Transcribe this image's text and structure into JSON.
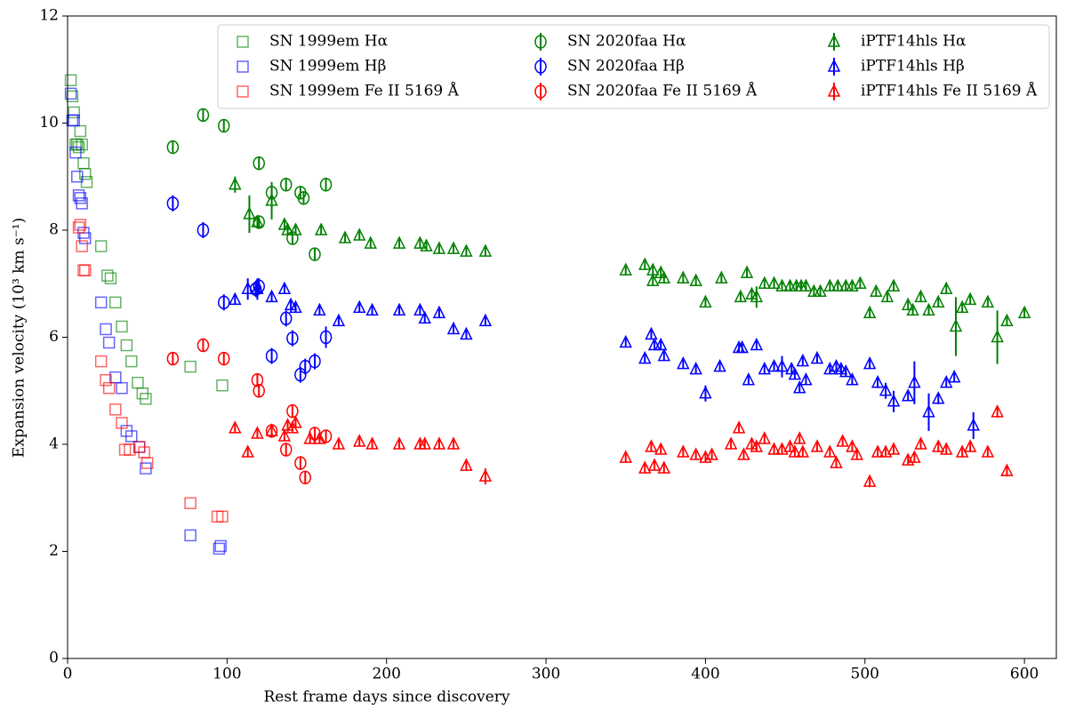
{
  "chart_data": {
    "type": "scatter",
    "xlabel": "Rest frame days since discovery",
    "ylabel": "Expansion velocity (10³ km s⁻¹)",
    "xlim": [
      0,
      620
    ],
    "ylim": [
      0,
      12
    ],
    "xticks": [
      0,
      100,
      200,
      300,
      400,
      500,
      600
    ],
    "yticks": [
      0,
      2,
      4,
      6,
      8,
      10,
      12
    ],
    "legend": "upper right",
    "series": [
      {
        "name": "SN 1999em Hα",
        "color": "#008000",
        "marker": "square",
        "alpha": 0.6,
        "x": [
          2,
          3,
          4,
          5,
          6,
          7,
          8,
          9,
          10,
          11,
          12,
          21,
          25,
          27,
          30,
          34,
          37,
          40,
          44,
          47,
          49,
          77,
          97
        ],
        "values": [
          10.8,
          10.5,
          10.2,
          9.6,
          9.6,
          9.55,
          9.85,
          9.6,
          9.25,
          9.05,
          8.9,
          7.7,
          7.15,
          7.1,
          6.65,
          6.2,
          5.85,
          5.55,
          5.15,
          4.95,
          4.85,
          5.45,
          5.1
        ]
      },
      {
        "name": "SN 1999em Hβ",
        "color": "#0000ff",
        "marker": "square",
        "alpha": 0.6,
        "x": [
          2,
          3,
          4,
          5,
          6,
          7,
          8,
          9,
          10,
          11,
          21,
          24,
          26,
          30,
          34,
          37,
          40,
          45,
          49,
          77,
          95,
          96
        ],
        "values": [
          10.55,
          10.05,
          10.05,
          9.45,
          9.0,
          8.65,
          8.6,
          8.5,
          7.95,
          7.85,
          6.65,
          6.15,
          5.9,
          5.25,
          5.05,
          4.25,
          4.15,
          3.95,
          3.55,
          2.3,
          2.05,
          2.1
        ]
      },
      {
        "name": "SN 1999em Fe II 5169 Å",
        "color": "#ff0000",
        "marker": "square",
        "alpha": 0.6,
        "x": [
          7,
          8,
          9,
          10,
          11,
          21,
          24,
          26,
          30,
          34,
          36,
          39,
          45,
          48,
          50,
          77,
          94,
          97
        ],
        "values": [
          8.05,
          8.1,
          7.7,
          7.25,
          7.25,
          5.55,
          5.2,
          5.05,
          4.65,
          4.4,
          3.9,
          3.9,
          3.95,
          3.85,
          3.65,
          2.9,
          2.65,
          2.65
        ]
      },
      {
        "name": "SN 2020faa Hα",
        "color": "#008000",
        "marker": "circle",
        "alpha": 1,
        "x": [
          66,
          85,
          98,
          120,
          120,
          128,
          137,
          141,
          146,
          148,
          155,
          162
        ],
        "values": [
          9.55,
          10.15,
          9.95,
          9.25,
          8.15,
          8.7,
          8.85,
          7.85,
          8.7,
          8.6,
          7.55,
          8.85
        ],
        "errors": [
          0.12,
          0.12,
          0.12,
          0.12,
          0.12,
          0.12,
          0.12,
          0.12,
          0.12,
          0.12,
          0.12,
          0.12
        ]
      },
      {
        "name": "SN 2020faa Hβ",
        "color": "#0000ff",
        "marker": "circle",
        "alpha": 1,
        "x": [
          66,
          85,
          98,
          118,
          120,
          128,
          137,
          141,
          146,
          149,
          155,
          162
        ],
        "values": [
          8.5,
          8.0,
          6.65,
          6.9,
          6.95,
          5.65,
          6.35,
          5.98,
          5.3,
          5.45,
          5.55,
          6.0
        ],
        "errors": [
          0.15,
          0.15,
          0.15,
          0.15,
          0.15,
          0.15,
          0.15,
          0.15,
          0.15,
          0.15,
          0.15,
          0.2
        ]
      },
      {
        "name": "SN 2020faa Fe II 5169 Å",
        "color": "#ff0000",
        "marker": "circle",
        "alpha": 1,
        "x": [
          66,
          85,
          98,
          119,
          120,
          128,
          137,
          141,
          146,
          149,
          155,
          162
        ],
        "values": [
          5.6,
          5.85,
          5.6,
          5.2,
          5.0,
          4.25,
          3.9,
          4.62,
          3.65,
          3.38,
          4.2,
          4.15
        ],
        "errors": [
          0.12,
          0.12,
          0.12,
          0.12,
          0.12,
          0.12,
          0.12,
          0.12,
          0.12,
          0.12,
          0.12,
          0.12
        ]
      },
      {
        "name": "iPTF14hls Hα",
        "color": "#008000",
        "marker": "triangle",
        "alpha": 1,
        "x": [
          105,
          114,
          119,
          128,
          136,
          138,
          143,
          159,
          174,
          183,
          190,
          208,
          221,
          225,
          233,
          242,
          250,
          262,
          350,
          362,
          367,
          372,
          374,
          367,
          386,
          394,
          400,
          410,
          422,
          426,
          429,
          432,
          437,
          443,
          448,
          453,
          457,
          460,
          463,
          468,
          472,
          478,
          483,
          488,
          492,
          497,
          503,
          507,
          514,
          518,
          527,
          530,
          535,
          540,
          546,
          551,
          557,
          561,
          566,
          577,
          583,
          589,
          600
        ],
        "values": [
          8.85,
          8.3,
          8.15,
          8.55,
          8.1,
          8.0,
          8.0,
          8.0,
          7.85,
          7.9,
          7.75,
          7.75,
          7.75,
          7.7,
          7.65,
          7.65,
          7.6,
          7.6,
          7.25,
          7.35,
          7.25,
          7.2,
          7.1,
          7.05,
          7.1,
          7.05,
          6.65,
          7.1,
          6.75,
          7.2,
          6.8,
          6.75,
          7.0,
          7.0,
          6.95,
          6.95,
          6.95,
          6.95,
          6.95,
          6.85,
          6.85,
          6.95,
          6.95,
          6.95,
          6.95,
          7.0,
          6.45,
          6.85,
          6.75,
          6.95,
          6.6,
          6.5,
          6.75,
          6.5,
          6.65,
          6.9,
          6.2,
          6.55,
          6.7,
          6.65,
          6.0,
          6.3,
          6.45
        ],
        "errors": [
          0.15,
          0.35,
          0.1,
          0.35,
          0.1,
          0.08,
          0.08,
          0.08,
          0.08,
          0.08,
          0.08,
          0.08,
          0.08,
          0.08,
          0.08,
          0.08,
          0.08,
          0.08,
          0.08,
          0.08,
          0.08,
          0.08,
          0.08,
          0.08,
          0.08,
          0.08,
          0.08,
          0.08,
          0.08,
          0.08,
          0.1,
          0.2,
          0.08,
          0.08,
          0.08,
          0.08,
          0.08,
          0.08,
          0.08,
          0.08,
          0.08,
          0.08,
          0.08,
          0.08,
          0.08,
          0.08,
          0.08,
          0.08,
          0.08,
          0.08,
          0.08,
          0.08,
          0.08,
          0.08,
          0.08,
          0.08,
          0.55,
          0.08,
          0.08,
          0.08,
          0.5,
          0.08,
          0.08
        ]
      },
      {
        "name": "iPTF14hls Hβ",
        "color": "#0000ff",
        "marker": "triangle",
        "alpha": 1,
        "x": [
          105,
          113,
          119,
          128,
          136,
          140,
          143,
          158,
          170,
          183,
          191,
          208,
          221,
          224,
          233,
          242,
          250,
          262,
          350,
          362,
          366,
          368,
          372,
          374,
          386,
          394,
          400,
          409,
          421,
          423,
          427,
          432,
          437,
          443,
          448,
          454,
          456,
          459,
          461,
          463,
          470,
          478,
          482,
          485,
          488,
          492,
          503,
          508,
          513,
          518,
          527,
          531,
          540,
          546,
          551,
          556,
          568
        ],
        "values": [
          6.7,
          6.9,
          6.9,
          6.75,
          6.9,
          6.6,
          6.55,
          6.5,
          6.3,
          6.55,
          6.5,
          6.5,
          6.5,
          6.35,
          6.45,
          6.15,
          6.05,
          6.3,
          5.9,
          5.6,
          6.05,
          5.85,
          5.85,
          5.65,
          5.5,
          5.4,
          4.95,
          5.45,
          5.8,
          5.8,
          5.2,
          5.85,
          5.4,
          5.45,
          5.45,
          5.4,
          5.3,
          5.05,
          5.55,
          5.2,
          5.6,
          5.4,
          5.45,
          5.4,
          5.35,
          5.2,
          5.5,
          5.15,
          5.0,
          4.8,
          4.9,
          5.15,
          4.6,
          4.85,
          5.15,
          5.25,
          4.35
        ],
        "errors": [
          0.08,
          0.2,
          0.2,
          0.08,
          0.08,
          0.08,
          0.08,
          0.08,
          0.08,
          0.08,
          0.08,
          0.08,
          0.08,
          0.08,
          0.08,
          0.08,
          0.08,
          0.08,
          0.08,
          0.08,
          0.08,
          0.08,
          0.08,
          0.08,
          0.08,
          0.08,
          0.15,
          0.08,
          0.08,
          0.08,
          0.08,
          0.08,
          0.08,
          0.08,
          0.2,
          0.08,
          0.08,
          0.08,
          0.08,
          0.08,
          0.08,
          0.08,
          0.08,
          0.08,
          0.08,
          0.08,
          0.08,
          0.1,
          0.15,
          0.2,
          0.08,
          0.4,
          0.35,
          0.1,
          0.08,
          0.08,
          0.25
        ]
      },
      {
        "name": "iPTF14hls Fe II 5169 Å",
        "color": "#ff0000",
        "marker": "triangle",
        "alpha": 1,
        "x": [
          105,
          113,
          119,
          128,
          136,
          138,
          141,
          143,
          152,
          158,
          170,
          183,
          191,
          208,
          221,
          224,
          233,
          242,
          250,
          262,
          350,
          362,
          366,
          368,
          372,
          374,
          386,
          394,
          400,
          404,
          416,
          421,
          424,
          429,
          432,
          437,
          443,
          448,
          453,
          456,
          459,
          461,
          470,
          478,
          482,
          486,
          492,
          495,
          503,
          508,
          513,
          518,
          527,
          531,
          535,
          546,
          551,
          561,
          566,
          577,
          583,
          589
        ],
        "values": [
          4.3,
          3.85,
          4.2,
          4.25,
          4.15,
          4.35,
          4.3,
          4.4,
          4.1,
          4.1,
          4.0,
          4.05,
          4.0,
          4.0,
          4.0,
          4.0,
          4.0,
          4.0,
          3.6,
          3.4,
          3.75,
          3.55,
          3.95,
          3.6,
          3.9,
          3.55,
          3.85,
          3.8,
          3.75,
          3.8,
          4.0,
          4.3,
          3.8,
          4.0,
          3.95,
          4.1,
          3.9,
          3.9,
          3.95,
          3.85,
          4.1,
          3.85,
          3.95,
          3.85,
          3.65,
          4.05,
          3.95,
          3.8,
          3.3,
          3.85,
          3.85,
          3.9,
          3.7,
          3.75,
          4.0,
          3.95,
          3.9,
          3.85,
          3.95,
          3.85,
          4.6,
          3.5
        ],
        "errors": [
          0.08,
          0.08,
          0.08,
          0.08,
          0.08,
          0.08,
          0.08,
          0.08,
          0.08,
          0.08,
          0.08,
          0.08,
          0.08,
          0.08,
          0.08,
          0.08,
          0.08,
          0.08,
          0.08,
          0.15,
          0.08,
          0.08,
          0.08,
          0.08,
          0.08,
          0.08,
          0.08,
          0.08,
          0.08,
          0.08,
          0.08,
          0.08,
          0.08,
          0.08,
          0.08,
          0.08,
          0.08,
          0.08,
          0.08,
          0.08,
          0.08,
          0.08,
          0.08,
          0.08,
          0.08,
          0.08,
          0.08,
          0.08,
          0.1,
          0.08,
          0.08,
          0.08,
          0.08,
          0.08,
          0.08,
          0.08,
          0.08,
          0.08,
          0.08,
          0.08,
          0.1,
          0.1
        ]
      }
    ]
  }
}
